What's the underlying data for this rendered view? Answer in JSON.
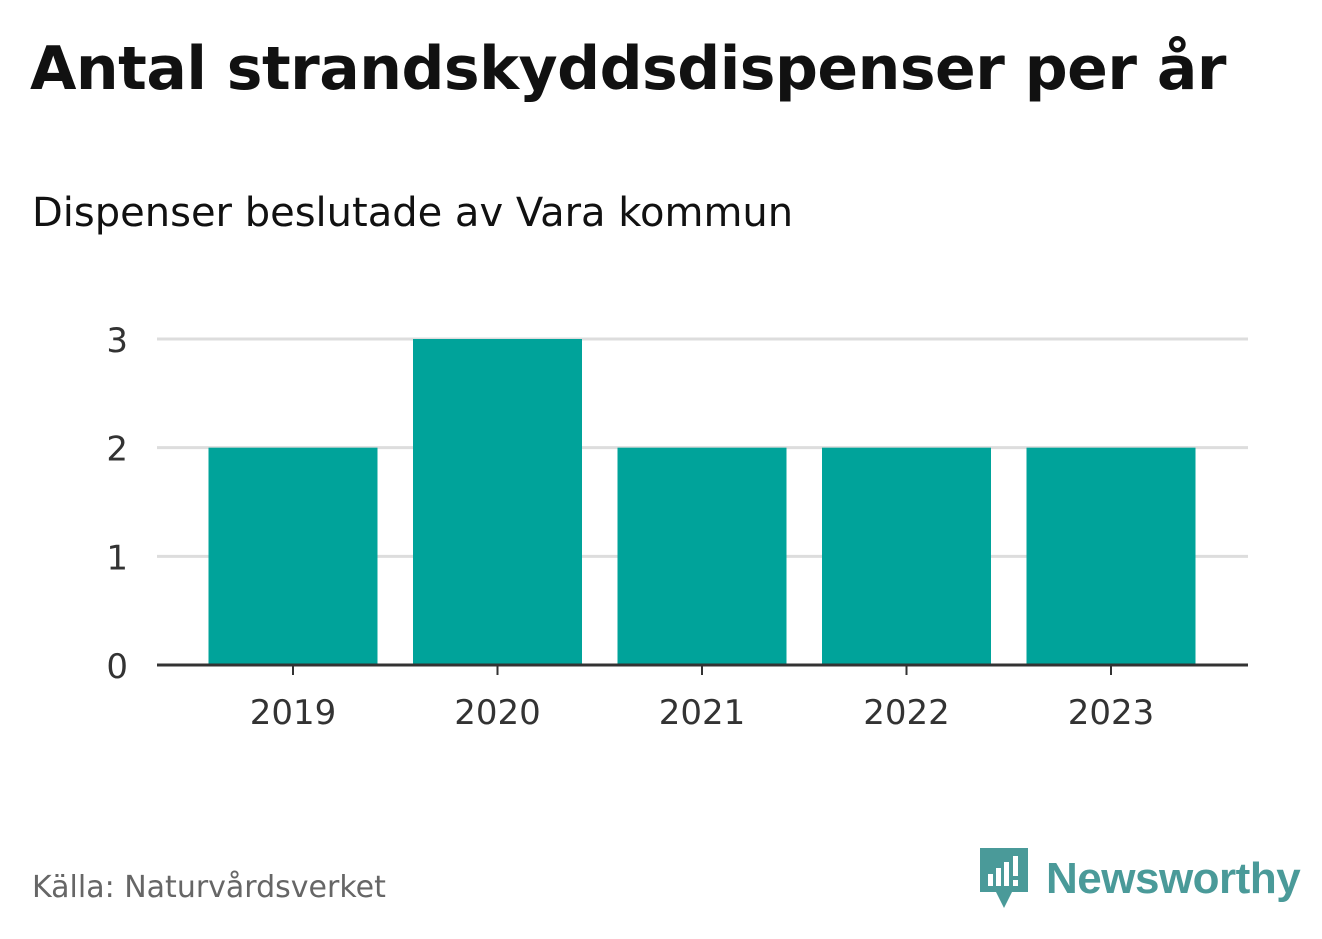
{
  "header": {
    "title": "Antal strandskyddsdispenser per år",
    "subtitle": "Dispenser beslutade av Vara kommun"
  },
  "footer": {
    "source": "Källa: Naturvårdsverket",
    "brand": "Newsworthy"
  },
  "colors": {
    "bar": "#00a39a",
    "grid": "#dddddd",
    "axis": "#333333",
    "brand": "#4a9a99"
  },
  "chart_data": {
    "type": "bar",
    "title": "Antal strandskyddsdispenser per år",
    "subtitle": "Dispenser beslutade av Vara kommun",
    "xlabel": "",
    "ylabel": "",
    "categories": [
      "2019",
      "2020",
      "2021",
      "2022",
      "2023"
    ],
    "values": [
      2,
      3,
      2,
      2,
      2
    ],
    "ylim": [
      0,
      3
    ],
    "yticks": [
      "0",
      "1",
      "2",
      "3"
    ],
    "grid": true
  }
}
